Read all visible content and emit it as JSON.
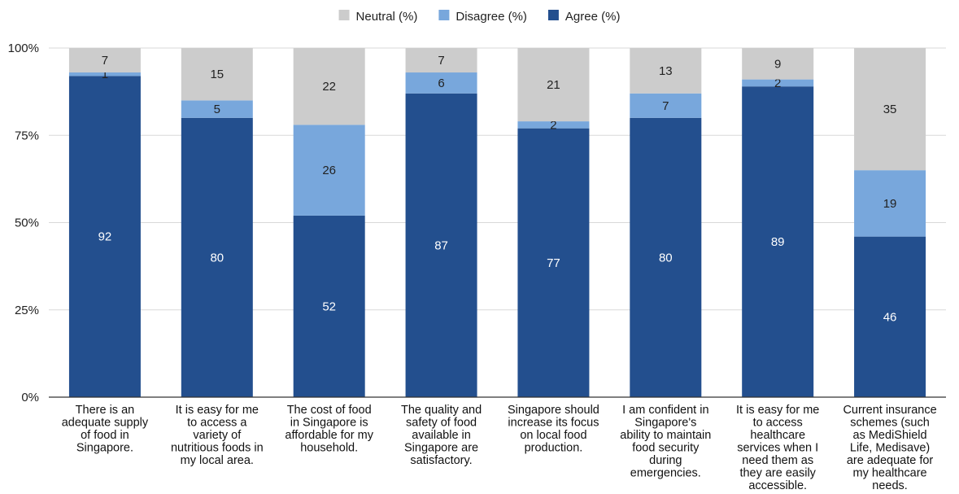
{
  "chart_data": {
    "type": "bar",
    "stacked": true,
    "categories": [
      "There is an adequate supply of food in Singapore.",
      "It is easy for me to access a variety of nutritious foods in my local area.",
      "The cost of food in Singapore is affordable for my household.",
      "The quality and safety of food available in Singapore are satisfactory.",
      "Singapore should increase its focus on local food production.",
      "I am confident in Singapore's ability to maintain food security during emergencies.",
      "It is easy for me to access healthcare services when I need them as they are easily accessible.",
      "Current insurance schemes (such as MediShield Life, Medisave) are adequate for my healthcare needs."
    ],
    "category_lines": [
      [
        "There is an",
        "adequate supply",
        "of food in",
        "Singapore."
      ],
      [
        "It is easy for me",
        "to access a",
        "variety of",
        "nutritious foods in",
        "my local area."
      ],
      [
        "The cost of food",
        "in Singapore is",
        "affordable for my",
        "household."
      ],
      [
        "The quality and",
        "safety of food",
        "available in",
        "Singapore are",
        "satisfactory."
      ],
      [
        "Singapore should",
        "increase its focus",
        "on local food",
        "production."
      ],
      [
        "I am confident in",
        "Singapore's",
        "ability to maintain",
        "food security",
        "during",
        "emergencies."
      ],
      [
        "It is easy for me",
        "to access",
        "healthcare",
        "services when I",
        "need them as",
        "they are easily",
        "accessible."
      ],
      [
        "Current insurance",
        "schemes (such",
        "as MediShield",
        "Life, Medisave)",
        "are adequate for",
        "my healthcare",
        "needs."
      ]
    ],
    "series": [
      {
        "name": "Agree (%)",
        "color": "#234f8e",
        "values": [
          92,
          80,
          52,
          87,
          77,
          80,
          89,
          46
        ]
      },
      {
        "name": "Disagree (%)",
        "color": "#78a7dc",
        "values": [
          1,
          5,
          26,
          6,
          2,
          7,
          2,
          19
        ]
      },
      {
        "name": "Neutral (%)",
        "color": "#cccccc",
        "values": [
          7,
          15,
          22,
          7,
          21,
          13,
          9,
          35
        ]
      }
    ],
    "legend_order": [
      "Neutral (%)",
      "Disagree (%)",
      "Agree (%)"
    ],
    "legend_position": "top",
    "y_ticks": [
      "0%",
      "25%",
      "50%",
      "75%",
      "100%"
    ],
    "ylim": [
      0,
      100
    ],
    "title": "",
    "xlabel": "",
    "ylabel": ""
  }
}
